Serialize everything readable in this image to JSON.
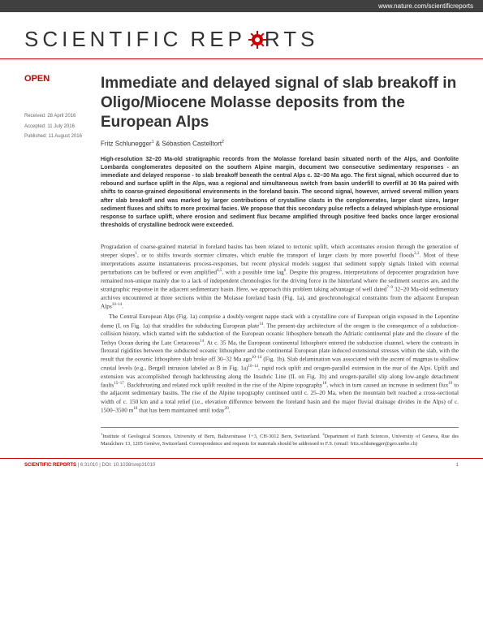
{
  "header_url": "www.nature.com/scientificreports",
  "logo": {
    "part1": "SCIENTIFIC",
    "part2": "REP",
    "part3": "RTS"
  },
  "open_label": "OPEN",
  "meta": {
    "received": "Received: 28 April 2016",
    "accepted": "Accepted: 11 July 2016",
    "published": "Published: 11 August 2016"
  },
  "title": "Immediate and delayed signal of slab breakoff in Oligo/Miocene Molasse deposits from the European Alps",
  "authors_html": "Fritz Schlunegger<sup>1</sup> & Sébastien Castelltort<sup>2</sup>",
  "abstract": "High-resolution 32–20 Ma-old stratigraphic records from the Molasse foreland basin situated north of the Alps, and Gonfolite Lombarda conglomerates deposited on the southern Alpine margin, document two consecutive sedimentary responses - an immediate and delayed response - to slab breakoff beneath the central Alps c. 32–30 Ma ago. The first signal, which occurred due to rebound and surface uplift in the Alps, was a regional and simultaneous switch from basin underfill to overfill at 30 Ma paired with shifts to coarse-grained depositional environments in the foreland basin. The second signal, however, arrived several million years after slab breakoff and was marked by larger contributions of crystalline clasts in the conglomerates, larger clast sizes, larger sediment fluxes and shifts to more proximal facies. We propose that this secondary pulse reflects a delayed whiplash-type erosional response to surface uplift, where erosion and sediment flux became amplified through positive feed backs once larger erosional thresholds of crystalline bedrock were exceeded.",
  "body": {
    "p1": "Progradation of coarse-grained material in foreland basins has been related to tectonic uplift, which accentuates erosion through the generation of steeper slopes<sup>1</sup>, or to shifts towards stormier climates, which enable the transport of larger clasts by more powerful floods<sup>2,3</sup>. Most of these interpretations assume instantaneous process-responses, but recent physical models suggest that sediment supply signals linked with external perturbations can be buffered or even amplified<sup>4,5</sup>, with a possible time lag<sup>6</sup>. Despite this progress, interpretations of depocenter progradation have remained non-unique mainly due to a lack of independent chronologies for the driving force in the hinterland where the sediment sources are, and the stratigraphic response in the adjacent sedimentary basin. Here, we approach this problem taking advantage of well dated<sup>7–9</sup> 32–20 Ma-old sedimentary archives encountered at three sections within the Molasse foreland basin (Fig. 1a), and geochronological constraints from the adjacent European Alps<sup>10–14</sup>.",
    "p2": "The Central European Alps (Fig. 1a) comprise a doubly-vergent nappe stack with a crystalline core of European origin exposed in the Lepontine dome (L on Fig. 1a) that straddles the subducting European plate<sup>14</sup>. The present-day architecture of the orogen is the consequence of a subduction-collision history, which started with the subduction of the European oceanic lithosphere beneath the Adriatic continental plate and the closure of the Tethys Ocean during the Late Cretaceous<sup>14</sup>. At c. 35 Ma, the European continental lithosphere entered the subduction channel, where the contrasts in flexural rigidities between the subducted oceanic lithosphere and the continental European plate induced extensional stresses within the slab, with the result that the oceanic lithosphere slab broke off 30–32 Ma ago<sup>10–14</sup> (Fig. 1b). Slab delamination was associated with the ascent of magmas to shallow crustal levels (e.g., Bergell intrusion labeled as B in Fig. 1a)<sup>10–14</sup>, rapid rock uplift and orogen-parallel extension in the rear of the Alps. Uplift and extension was accomplished through backthrusting along the Insubric Line (IL on Fig. 1b) and orogen-parallel slip along low-angle detachment faults<sup>15–17</sup>. Backthrusting and related rock uplift resulted in the rise of the Alpine topography<sup>18</sup>, which in turn caused an increase in sediment flux<sup>19</sup> to the adjacent sedimentary basins. The rise of the Alpine topography continued until c. 25–20 Ma, when the mountain belt reached a cross-sectional width of c. 150 km and a total relief (i.e., elevation difference between the foreland basin and the major fluvial drainage divides in the Alps) of c. 1500–3500 m<sup>18</sup> that has been maintained until today<sup>20</sup>."
  },
  "affiliation": "<sup>1</sup>Institute of Geological Sciences, University of Bern, Baltzerstrasse 1+3, CH-3012 Bern, Switzerland. <sup>2</sup>Department of Earth Sciences, University of Geneva, Rue des Maraîchers 13, 1205 Genève, Switzerland. Correspondence and requests for materials should be addressed to F.S. (email: fritz.schlunegger@geo.unibe.ch)",
  "footer": {
    "journal": "SCIENTIFIC REPORTS",
    "citation": " | 6:31010 | DOI: 10.1038/srep31010",
    "page": "1"
  }
}
